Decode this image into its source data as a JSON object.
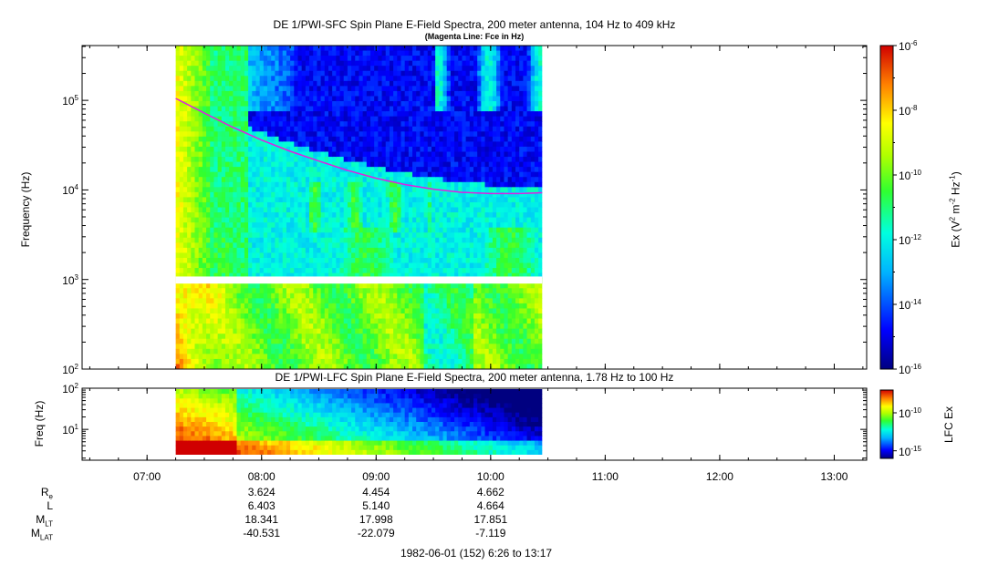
{
  "chart_data": [
    {
      "type": "heatmap",
      "title": "DE 1/PWI-SFC  Spin Plane E-Field Spectra, 200 meter antenna, 104 Hz to 409 kHz",
      "subtitle": "(Magenta Line: Fce in Hz)",
      "ylabel": "Frequency (Hz)",
      "yscale": "log",
      "ylim": [
        100,
        409000
      ],
      "yticks": [
        {
          "mantissa": "10",
          "exp": "2",
          "value": 100
        },
        {
          "mantissa": "10",
          "exp": "3",
          "value": 1000
        },
        {
          "mantissa": "10",
          "exp": "4",
          "value": 10000
        },
        {
          "mantissa": "10",
          "exp": "5",
          "value": 100000
        }
      ],
      "xlim": [
        6.433,
        13.283
      ],
      "data_extent_hours": [
        7.25,
        10.45
      ],
      "gap_hz": [
        900,
        1080
      ],
      "colorbar": {
        "label": "Ex (V",
        "label_sup1": "2",
        "label_mid": " m",
        "label_sup2": "-2",
        "label_mid2": " Hz",
        "label_sup3": "-1",
        "label_end": ")",
        "scale": "log",
        "range": [
          1e-16,
          1e-06
        ],
        "ticks": [
          {
            "mantissa": "10",
            "exp": "-6",
            "value": -6
          },
          {
            "mantissa": "10",
            "exp": "-8",
            "value": -8
          },
          {
            "mantissa": "10",
            "exp": "-10",
            "value": -10
          },
          {
            "mantissa": "10",
            "exp": "-12",
            "value": -12
          },
          {
            "mantissa": "10",
            "exp": "-14",
            "value": -14
          },
          {
            "mantissa": "10",
            "exp": "-16",
            "value": -16
          }
        ]
      },
      "fce_line": {
        "color": "#e020e0",
        "points": [
          [
            7.25,
            105000
          ],
          [
            7.5,
            72000
          ],
          [
            7.75,
            50000
          ],
          [
            8.0,
            36000
          ],
          [
            8.25,
            27000
          ],
          [
            8.5,
            21000
          ],
          [
            8.75,
            16500
          ],
          [
            9.0,
            13500
          ],
          [
            9.25,
            11500
          ],
          [
            9.5,
            10200
          ],
          [
            9.75,
            9400
          ],
          [
            10.0,
            9100
          ],
          [
            10.25,
            9100
          ],
          [
            10.45,
            9300
          ]
        ]
      }
    },
    {
      "type": "heatmap",
      "title": "DE 1/PWI-LFC  Spin Plane E-Field Spectra, 200 meter antenna, 1.78 Hz to 100 Hz",
      "ylabel": "Freq (Hz)",
      "yscale": "log",
      "ylim": [
        1.78,
        100
      ],
      "yticks": [
        {
          "mantissa": "10",
          "exp": "1",
          "value": 10
        },
        {
          "mantissa": "10",
          "exp": "2",
          "value": 100
        }
      ],
      "colorbar": {
        "label": "LFC Ex",
        "scale": "log",
        "range": [
          1e-16,
          1e-07
        ],
        "ticks": [
          {
            "mantissa": "10",
            "exp": "-10",
            "value": -10
          },
          {
            "mantissa": "10",
            "exp": "-15",
            "value": -15
          }
        ]
      }
    }
  ],
  "x_axis": {
    "ticks": [
      {
        "label": "07:00",
        "value": 7
      },
      {
        "label": "08:00",
        "value": 8
      },
      {
        "label": "09:00",
        "value": 9
      },
      {
        "label": "10:00",
        "value": 10
      },
      {
        "label": "11:00",
        "value": 11
      },
      {
        "label": "12:00",
        "value": 12
      },
      {
        "label": "13:00",
        "value": 13
      }
    ]
  },
  "ephemeris": {
    "rows": [
      {
        "name": "R",
        "sub": "e",
        "values": [
          "3.624",
          "4.454",
          "4.662"
        ]
      },
      {
        "name": "L",
        "sub": "",
        "values": [
          "6.403",
          "5.140",
          "4.664"
        ]
      },
      {
        "name": "M",
        "sub": "LT",
        "values": [
          "18.341",
          "17.998",
          "17.851"
        ]
      },
      {
        "name": "M",
        "sub": "LAT",
        "values": [
          "-40.531",
          "-22.079",
          "-7.119"
        ]
      }
    ],
    "times": [
      8,
      9,
      10
    ]
  },
  "footer": "1982-06-01 (152) 6:26 to 13:17"
}
